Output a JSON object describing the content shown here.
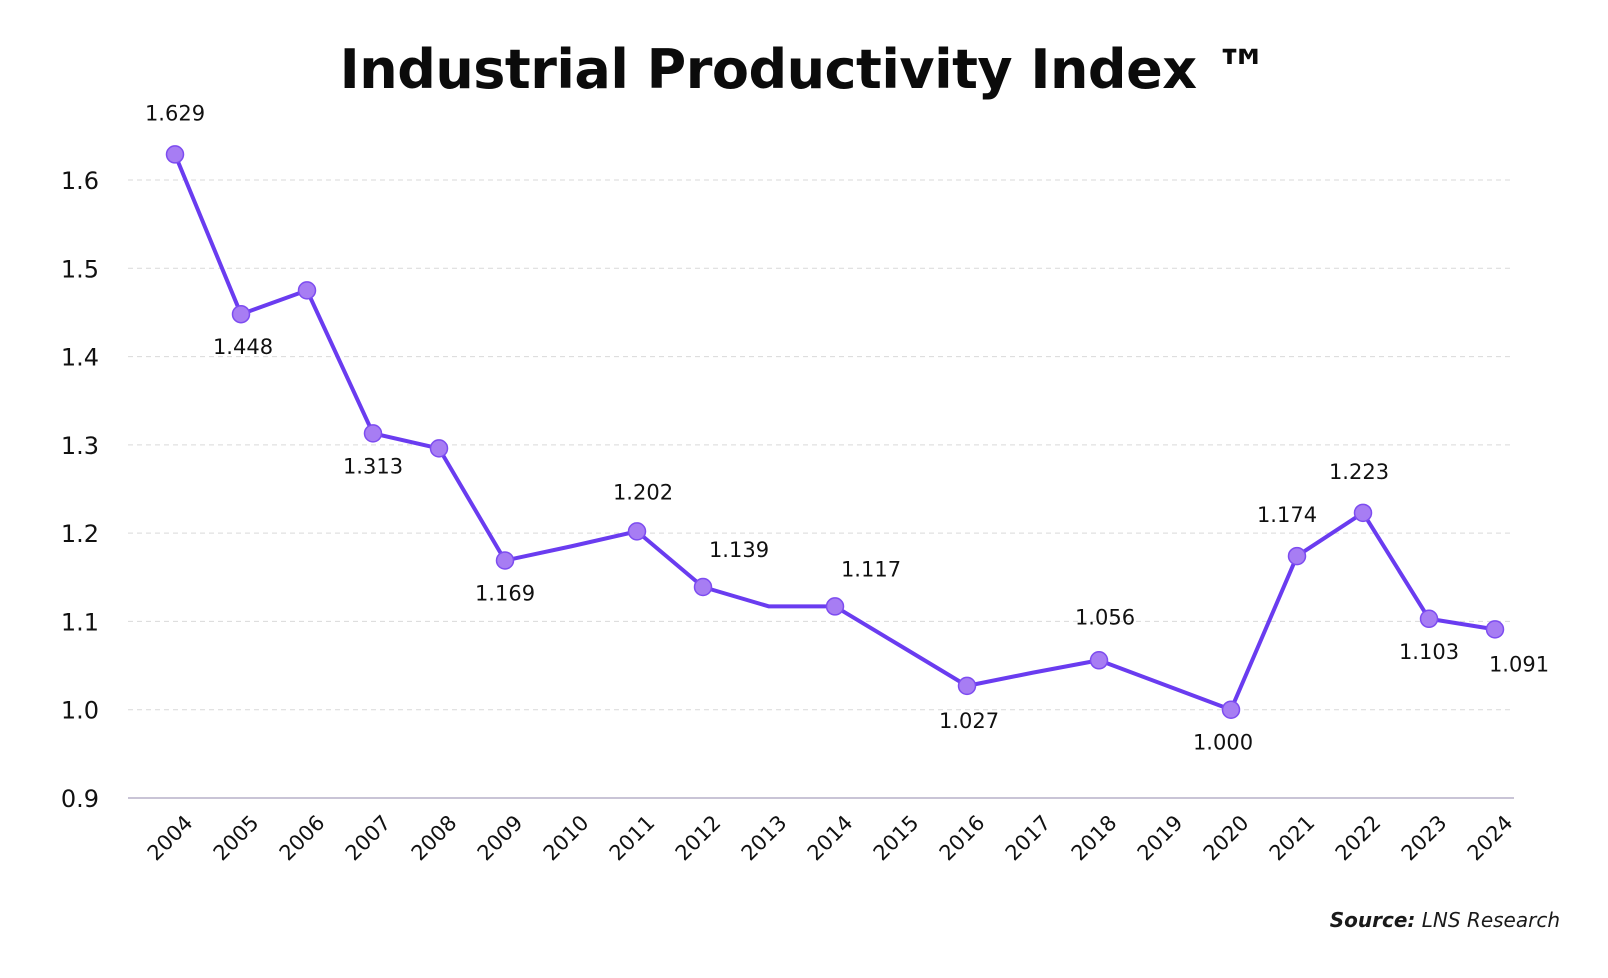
{
  "chart_data": {
    "type": "line",
    "title": "Industrial Productivity Index ™",
    "xlabel": "",
    "ylabel": "",
    "ylim": [
      0.9,
      1.6
    ],
    "yticks": [
      "1.6",
      "1.5",
      "1.4",
      "1.3",
      "1.2",
      "1.1",
      "1.0",
      "0.9"
    ],
    "categories": [
      "2004",
      "2005",
      "2006",
      "2007",
      "2008",
      "2009",
      "2010",
      "2011",
      "2012",
      "2013",
      "2014",
      "2015",
      "2016",
      "2017",
      "2018",
      "2019",
      "2020",
      "2021",
      "2022",
      "2023",
      "2024"
    ],
    "series": [
      {
        "color": "#6a3cf0",
        "values": [
          1.629,
          1.448,
          1.475,
          1.313,
          1.296,
          1.169,
          1.185,
          1.202,
          1.139,
          1.117,
          1.117,
          1.072,
          1.027,
          1.042,
          1.056,
          1.028,
          1.0,
          1.174,
          1.223,
          1.103,
          1.091
        ],
        "points": [
          {
            "x": "2004",
            "y": 1.629,
            "label": "1.629"
          },
          {
            "x": "2005",
            "y": 1.448,
            "label": "1.448"
          },
          {
            "x": "2006",
            "y": 1.475,
            "label": ""
          },
          {
            "x": "2007",
            "y": 1.313,
            "label": "1.313"
          },
          {
            "x": "2008",
            "y": 1.296,
            "label": ""
          },
          {
            "x": "2009",
            "y": 1.169,
            "label": "1.169"
          },
          {
            "x": "2011",
            "y": 1.202,
            "label": "1.202"
          },
          {
            "x": "2012",
            "y": 1.139,
            "label": "1.139"
          },
          {
            "x": "2014",
            "y": 1.117,
            "label": "1.117"
          },
          {
            "x": "2016",
            "y": 1.027,
            "label": "1.027"
          },
          {
            "x": "2018",
            "y": 1.056,
            "label": "1.056"
          },
          {
            "x": "2020",
            "y": 1.0,
            "label": "1.000"
          },
          {
            "x": "2021",
            "y": 1.174,
            "label": "1.174"
          },
          {
            "x": "2022",
            "y": 1.223,
            "label": "1.223"
          },
          {
            "x": "2023",
            "y": 1.103,
            "label": "1.103"
          },
          {
            "x": "2024",
            "y": 1.091,
            "label": "1.091"
          }
        ]
      }
    ],
    "grid": true,
    "marker_color": "#a77df3"
  },
  "source": {
    "label": "Source:",
    "text": "LNS Research"
  }
}
